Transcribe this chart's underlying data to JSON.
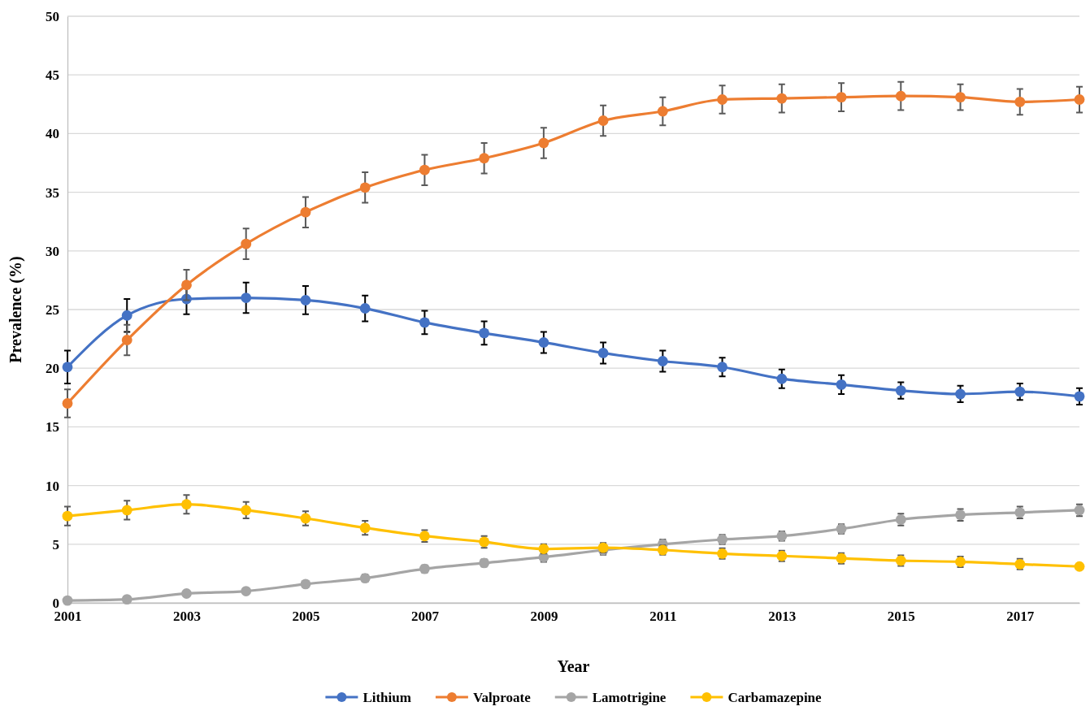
{
  "chart_data": {
    "type": "line",
    "xlabel": "Year",
    "ylabel": "Prevalence (%)",
    "x": [
      2001,
      2002,
      2003,
      2004,
      2005,
      2006,
      2007,
      2008,
      2009,
      2010,
      2011,
      2012,
      2013,
      2014,
      2015,
      2016,
      2017,
      2018
    ],
    "xlim": [
      2001,
      2018
    ],
    "xticks": [
      2001,
      2003,
      2005,
      2007,
      2009,
      2011,
      2013,
      2015,
      2017
    ],
    "ylim": [
      0,
      50
    ],
    "yticks": [
      0,
      5,
      10,
      15,
      20,
      25,
      30,
      35,
      40,
      45,
      50
    ],
    "grid": "y",
    "legend": "bottom",
    "marker": "circle",
    "line_style": "solid",
    "series": [
      {
        "name": "Lithium",
        "color": "#4472c4",
        "values": [
          20.1,
          24.5,
          25.9,
          26.0,
          25.8,
          25.1,
          23.9,
          23.0,
          22.2,
          21.3,
          20.6,
          20.1,
          19.1,
          18.6,
          18.1,
          17.8,
          18.0,
          17.6
        ],
        "errors": [
          1.4,
          1.4,
          1.3,
          1.3,
          1.2,
          1.1,
          1.0,
          1.0,
          0.9,
          0.9,
          0.9,
          0.8,
          0.8,
          0.8,
          0.7,
          0.7,
          0.7,
          0.7
        ]
      },
      {
        "name": "Valproate",
        "color": "#ed7d31",
        "values": [
          17.0,
          22.4,
          27.1,
          30.6,
          33.3,
          35.4,
          36.9,
          37.9,
          39.2,
          41.1,
          41.9,
          42.9,
          43.0,
          43.1,
          43.2,
          43.1,
          42.7,
          42.9
        ],
        "errors": [
          1.2,
          1.3,
          1.3,
          1.3,
          1.3,
          1.3,
          1.3,
          1.3,
          1.3,
          1.3,
          1.2,
          1.2,
          1.2,
          1.2,
          1.2,
          1.1,
          1.1,
          1.1
        ]
      },
      {
        "name": "Lamotrigine",
        "color": "#a5a5a5",
        "values": [
          0.2,
          0.3,
          0.8,
          1.0,
          1.6,
          2.1,
          2.9,
          3.4,
          3.9,
          4.5,
          5.0,
          5.4,
          5.7,
          6.3,
          7.1,
          7.5,
          7.7,
          7.9
        ],
        "errors": [
          null,
          null,
          null,
          null,
          null,
          0.3,
          0.3,
          0.3,
          0.4,
          0.4,
          0.4,
          0.4,
          0.4,
          0.4,
          0.5,
          0.5,
          0.5,
          0.5
        ]
      },
      {
        "name": "Carbamazepine",
        "color": "#ffc000",
        "values": [
          7.4,
          7.9,
          8.4,
          7.9,
          7.2,
          6.4,
          5.7,
          5.2,
          4.6,
          4.7,
          4.5,
          4.2,
          4.0,
          3.8,
          3.6,
          3.5,
          3.3,
          3.1
        ],
        "errors": [
          0.8,
          0.8,
          0.8,
          0.7,
          0.6,
          0.6,
          0.5,
          0.5,
          0.4,
          0.4,
          0.4,
          0.45,
          0.45,
          0.45,
          0.45,
          0.45,
          0.45,
          null
        ]
      }
    ]
  }
}
